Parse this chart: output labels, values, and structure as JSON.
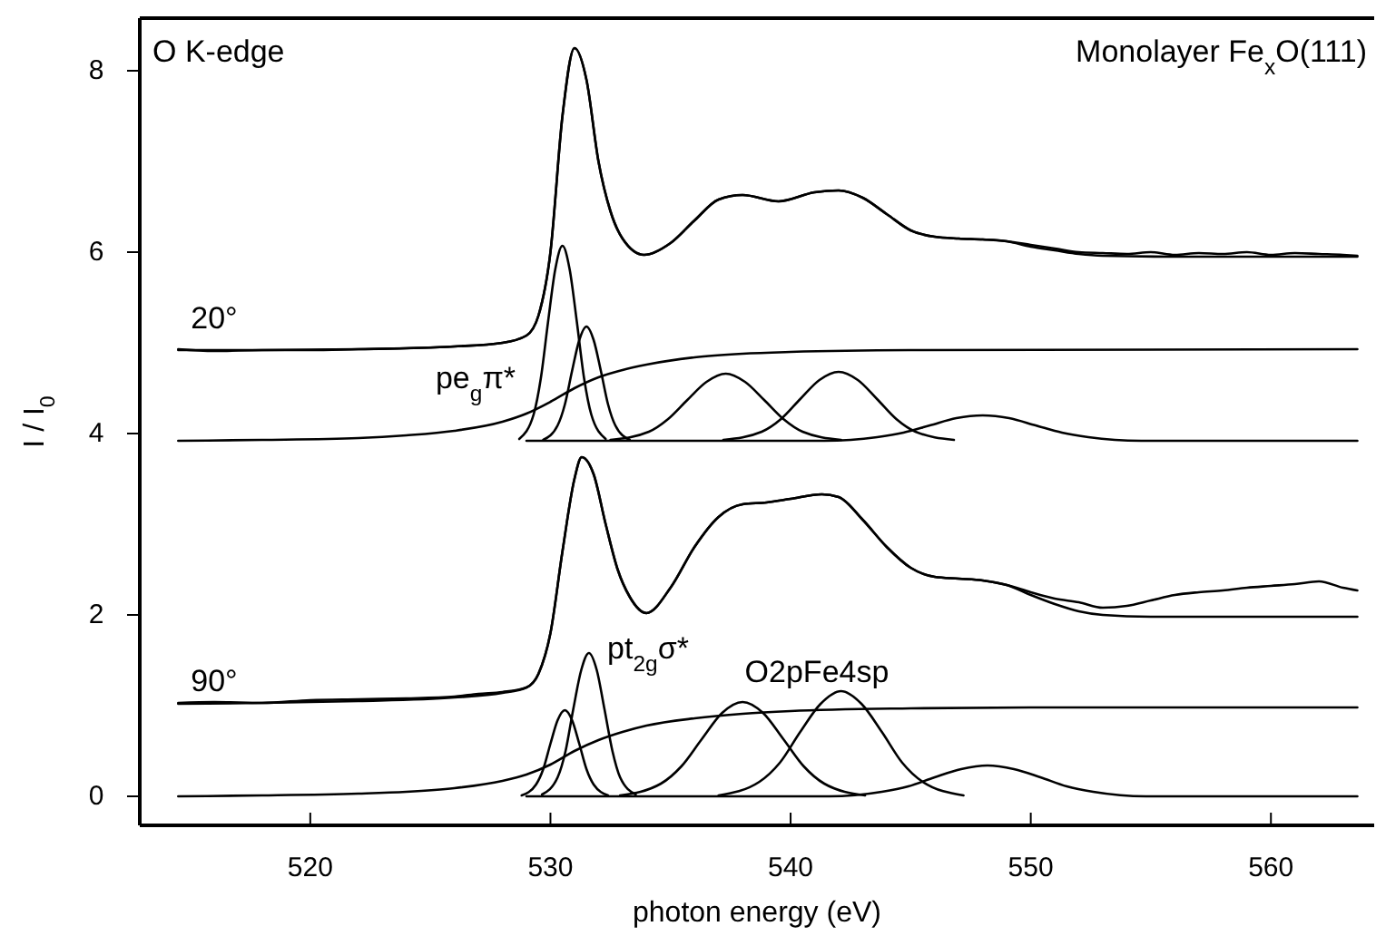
{
  "chart_data": {
    "type": "line",
    "xlabel": "photon energy (eV)",
    "ylabel": "I / I$_{0}$",
    "xlim": [
      512.9,
      564.3
    ],
    "ylim": [
      -0.32,
      8.58
    ],
    "xticks": [
      520,
      530,
      540,
      550,
      560
    ],
    "yticks": [
      0,
      2,
      4,
      6,
      8
    ],
    "annotations": [
      "O K-edge",
      "Monolayer Fe$_{x}$O(111)",
      "20°",
      "90°",
      "pe$_{g}$π*",
      "pt$_{2g}$σ*",
      "O2pFe4sp"
    ],
    "series": [
      {
        "color": "#000000",
        "x": [
          514.5,
          516,
          518,
          520,
          522,
          524,
          526,
          528,
          529,
          529.5,
          530,
          530.5,
          531,
          531.5,
          532,
          532.5,
          533,
          533.9,
          535,
          536,
          537,
          538,
          539.5,
          541,
          542,
          543,
          544,
          545,
          546,
          547,
          548,
          549,
          550,
          551,
          552,
          553,
          554,
          555,
          556,
          557,
          558,
          559,
          560,
          561,
          562,
          563,
          563.6
        ],
        "values": [
          4.93,
          4.91,
          4.92,
          4.92,
          4.93,
          4.94,
          4.96,
          5.0,
          5.08,
          5.3,
          6.0,
          7.5,
          8.25,
          7.9,
          7.0,
          6.45,
          6.15,
          5.97,
          6.1,
          6.35,
          6.58,
          6.63,
          6.56,
          6.66,
          6.68,
          6.6,
          6.42,
          6.24,
          6.17,
          6.15,
          6.14,
          6.12,
          6.08,
          6.04,
          6.0,
          5.99,
          5.98,
          6.0,
          5.97,
          5.99,
          5.98,
          6.0,
          5.97,
          5.99,
          5.98,
          5.97,
          5.96
        ]
      },
      {
        "color": "#000000",
        "x": [
          514.5,
          518,
          522,
          526,
          528,
          529,
          529.5,
          530,
          530.5,
          531,
          531.5,
          532,
          532.5,
          533,
          533.9,
          535,
          536,
          537,
          538,
          539.5,
          541,
          542,
          543,
          544,
          545,
          546,
          547,
          548,
          549,
          550,
          551,
          552,
          553,
          556,
          563.6
        ],
        "values": [
          4.92,
          4.92,
          4.93,
          4.96,
          5.0,
          5.08,
          5.3,
          6.0,
          7.5,
          8.25,
          7.9,
          7.0,
          6.45,
          6.15,
          5.97,
          6.1,
          6.35,
          6.58,
          6.63,
          6.56,
          6.66,
          6.68,
          6.6,
          6.42,
          6.24,
          6.17,
          6.15,
          6.14,
          6.12,
          6.06,
          6.02,
          5.98,
          5.96,
          5.95,
          5.95
        ]
      },
      {
        "color": "#000000",
        "x": [
          514.5,
          518,
          522,
          524,
          526,
          528,
          529,
          530,
          531,
          532,
          533,
          534,
          536,
          538,
          540,
          545,
          563.6
        ],
        "values": [
          3.92,
          3.93,
          3.95,
          3.98,
          4.03,
          4.13,
          4.22,
          4.35,
          4.5,
          4.62,
          4.7,
          4.76,
          4.84,
          4.88,
          4.9,
          4.92,
          4.93
        ]
      },
      {
        "color": "#000000",
        "x": [
          528.7,
          529.3,
          529.6,
          529.9,
          530.2,
          530.5,
          530.8,
          531.1,
          531.4,
          531.7,
          532.3
        ],
        "values": [
          3.94,
          4.21,
          4.61,
          5.23,
          5.81,
          6.07,
          5.81,
          5.23,
          4.61,
          4.21,
          3.94
        ]
      },
      {
        "color": "#000000",
        "x": [
          529.7,
          530.3,
          530.6,
          530.9,
          531.2,
          531.5,
          531.8,
          532.1,
          532.4,
          532.7,
          533.3
        ],
        "values": [
          3.93,
          4.09,
          4.32,
          4.69,
          5.03,
          5.18,
          5.03,
          4.69,
          4.32,
          4.09,
          3.93
        ]
      },
      {
        "color": "#000000",
        "x": [
          532.5,
          534.1,
          534.9,
          535.7,
          536.5,
          537.3,
          538.1,
          538.9,
          539.7,
          540.5,
          542.1
        ],
        "values": [
          3.93,
          4.02,
          4.16,
          4.37,
          4.57,
          4.66,
          4.57,
          4.37,
          4.16,
          4.02,
          3.93
        ]
      },
      {
        "color": "#000000",
        "x": [
          537.2,
          538.8,
          539.6,
          540.4,
          541.2,
          542.0,
          542.8,
          543.6,
          544.4,
          545.2,
          546.8
        ],
        "values": [
          3.93,
          4.02,
          4.16,
          4.38,
          4.59,
          4.68,
          4.59,
          4.38,
          4.16,
          4.02,
          3.93
        ]
      },
      {
        "color": "#000000",
        "x": [
          529.0,
          541.4,
          543.6,
          544.7,
          545.8,
          546.9,
          548,
          549.1,
          550.2,
          551.3,
          552.4,
          554.6,
          563.6
        ],
        "values": [
          3.92,
          3.92,
          3.96,
          4.01,
          4.09,
          4.17,
          4.2,
          4.17,
          4.09,
          4.01,
          3.96,
          3.92,
          3.92
        ]
      },
      {
        "color": "#000000",
        "x": [
          514.5,
          516,
          518,
          520,
          522,
          524,
          526,
          527,
          528,
          529,
          529.5,
          530,
          530.5,
          531,
          531.3,
          531.8,
          532.3,
          532.8,
          533.3,
          534,
          535,
          536,
          537,
          538,
          539,
          540,
          541.3,
          542,
          543,
          544,
          545,
          546,
          547,
          548,
          549,
          550,
          551,
          552,
          553,
          554,
          555,
          556,
          557,
          558,
          559,
          560,
          561,
          562,
          563,
          563.6
        ],
        "values": [
          1.03,
          1.04,
          1.03,
          1.06,
          1.07,
          1.08,
          1.1,
          1.13,
          1.15,
          1.2,
          1.35,
          1.8,
          2.7,
          3.5,
          3.74,
          3.55,
          3.0,
          2.5,
          2.2,
          2.02,
          2.3,
          2.75,
          3.08,
          3.22,
          3.24,
          3.28,
          3.33,
          3.3,
          3.05,
          2.75,
          2.52,
          2.42,
          2.4,
          2.38,
          2.33,
          2.25,
          2.18,
          2.14,
          2.08,
          2.1,
          2.16,
          2.22,
          2.25,
          2.27,
          2.3,
          2.32,
          2.34,
          2.37,
          2.3,
          2.27
        ]
      },
      {
        "color": "#000000",
        "x": [
          514.5,
          518,
          522,
          526,
          528,
          529,
          529.5,
          530,
          530.5,
          531,
          531.3,
          531.8,
          532.3,
          532.8,
          533.3,
          534,
          535,
          536,
          537,
          538,
          539,
          540,
          541.3,
          542,
          543,
          544,
          545,
          546,
          547,
          548,
          549,
          550,
          551,
          552,
          553,
          555,
          563.6
        ],
        "values": [
          1.02,
          1.03,
          1.05,
          1.09,
          1.14,
          1.2,
          1.35,
          1.8,
          2.7,
          3.5,
          3.74,
          3.55,
          3.0,
          2.5,
          2.2,
          2.02,
          2.3,
          2.75,
          3.08,
          3.22,
          3.24,
          3.28,
          3.33,
          3.3,
          3.05,
          2.75,
          2.52,
          2.42,
          2.4,
          2.38,
          2.33,
          2.22,
          2.12,
          2.04,
          2.0,
          1.98,
          1.98
        ]
      },
      {
        "color": "#000000",
        "x": [
          514.5,
          518,
          522,
          524,
          526,
          528,
          529,
          530,
          531,
          532,
          533,
          534,
          536,
          538,
          540,
          545,
          550,
          563.6
        ],
        "values": [
          0,
          0.01,
          0.03,
          0.05,
          0.09,
          0.17,
          0.24,
          0.35,
          0.5,
          0.62,
          0.71,
          0.78,
          0.86,
          0.91,
          0.94,
          0.97,
          0.98,
          0.98
        ]
      },
      {
        "color": "#000000",
        "x": [
          528.8,
          529.4,
          529.7,
          530.0,
          530.3,
          530.6,
          530.9,
          531.2,
          531.5,
          531.8,
          532.4
        ],
        "values": [
          0.01,
          0.13,
          0.3,
          0.58,
          0.84,
          0.95,
          0.84,
          0.58,
          0.3,
          0.13,
          0.01
        ]
      },
      {
        "color": "#000000",
        "x": [
          529.65,
          530.3,
          530.63,
          530.95,
          531.28,
          531.6,
          531.93,
          532.25,
          532.58,
          532.9,
          533.55
        ],
        "values": [
          0.02,
          0.21,
          0.5,
          0.96,
          1.39,
          1.58,
          1.39,
          0.96,
          0.5,
          0.21,
          0.02
        ]
      },
      {
        "color": "#000000",
        "x": [
          532.9,
          534.6,
          535.45,
          536.3,
          537.15,
          538,
          538.85,
          539.7,
          540.55,
          541.4,
          543.1
        ],
        "values": [
          0.01,
          0.14,
          0.33,
          0.63,
          0.92,
          1.04,
          0.92,
          0.63,
          0.33,
          0.14,
          0.01
        ]
      },
      {
        "color": "#000000",
        "x": [
          537.0,
          538.7,
          539.55,
          540.4,
          541.25,
          542.1,
          542.95,
          543.8,
          544.65,
          545.5,
          547.2
        ],
        "values": [
          0.01,
          0.16,
          0.37,
          0.71,
          1.02,
          1.16,
          1.02,
          0.71,
          0.37,
          0.16,
          0.01
        ]
      },
      {
        "color": "#000000",
        "x": [
          529.0,
          541.6,
          543.8,
          544.9,
          546,
          547.1,
          548.2,
          549.3,
          550.4,
          551.5,
          552.6,
          554.8,
          563.6
        ],
        "values": [
          0,
          0,
          0.05,
          0.11,
          0.21,
          0.3,
          0.34,
          0.3,
          0.21,
          0.11,
          0.05,
          0,
          0
        ]
      }
    ]
  }
}
